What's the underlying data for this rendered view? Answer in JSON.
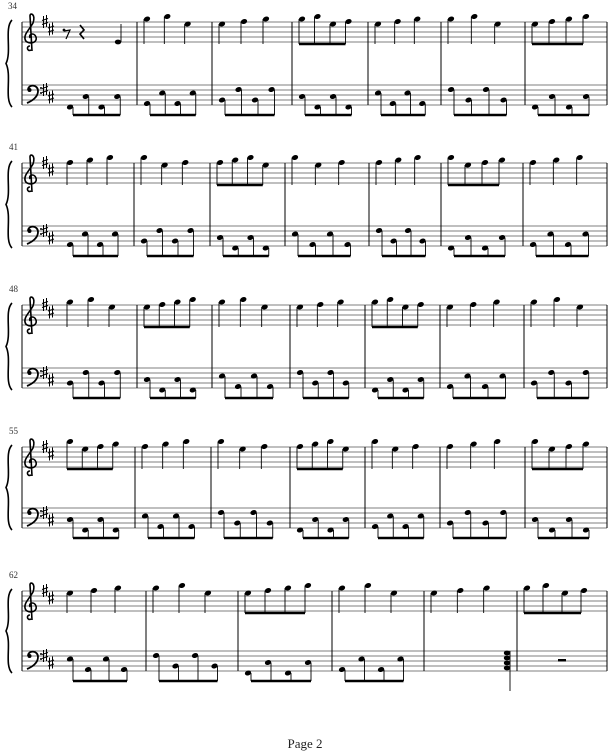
{
  "document": {
    "type": "piano sheet music",
    "key_signature": "D major (2 sharps)",
    "clefs": [
      "treble",
      "bass"
    ],
    "systems": [
      {
        "first_measure": "34",
        "measure_count": 7
      },
      {
        "first_measure": "41",
        "measure_count": 7
      },
      {
        "first_measure": "48",
        "measure_count": 7
      },
      {
        "first_measure": "55",
        "measure_count": 7
      },
      {
        "first_measure": "62",
        "measure_count": 6
      }
    ],
    "footer": "Page 2"
  },
  "colors": {
    "ink": "#000000",
    "staff": "#555555",
    "background": "#ffffff"
  }
}
